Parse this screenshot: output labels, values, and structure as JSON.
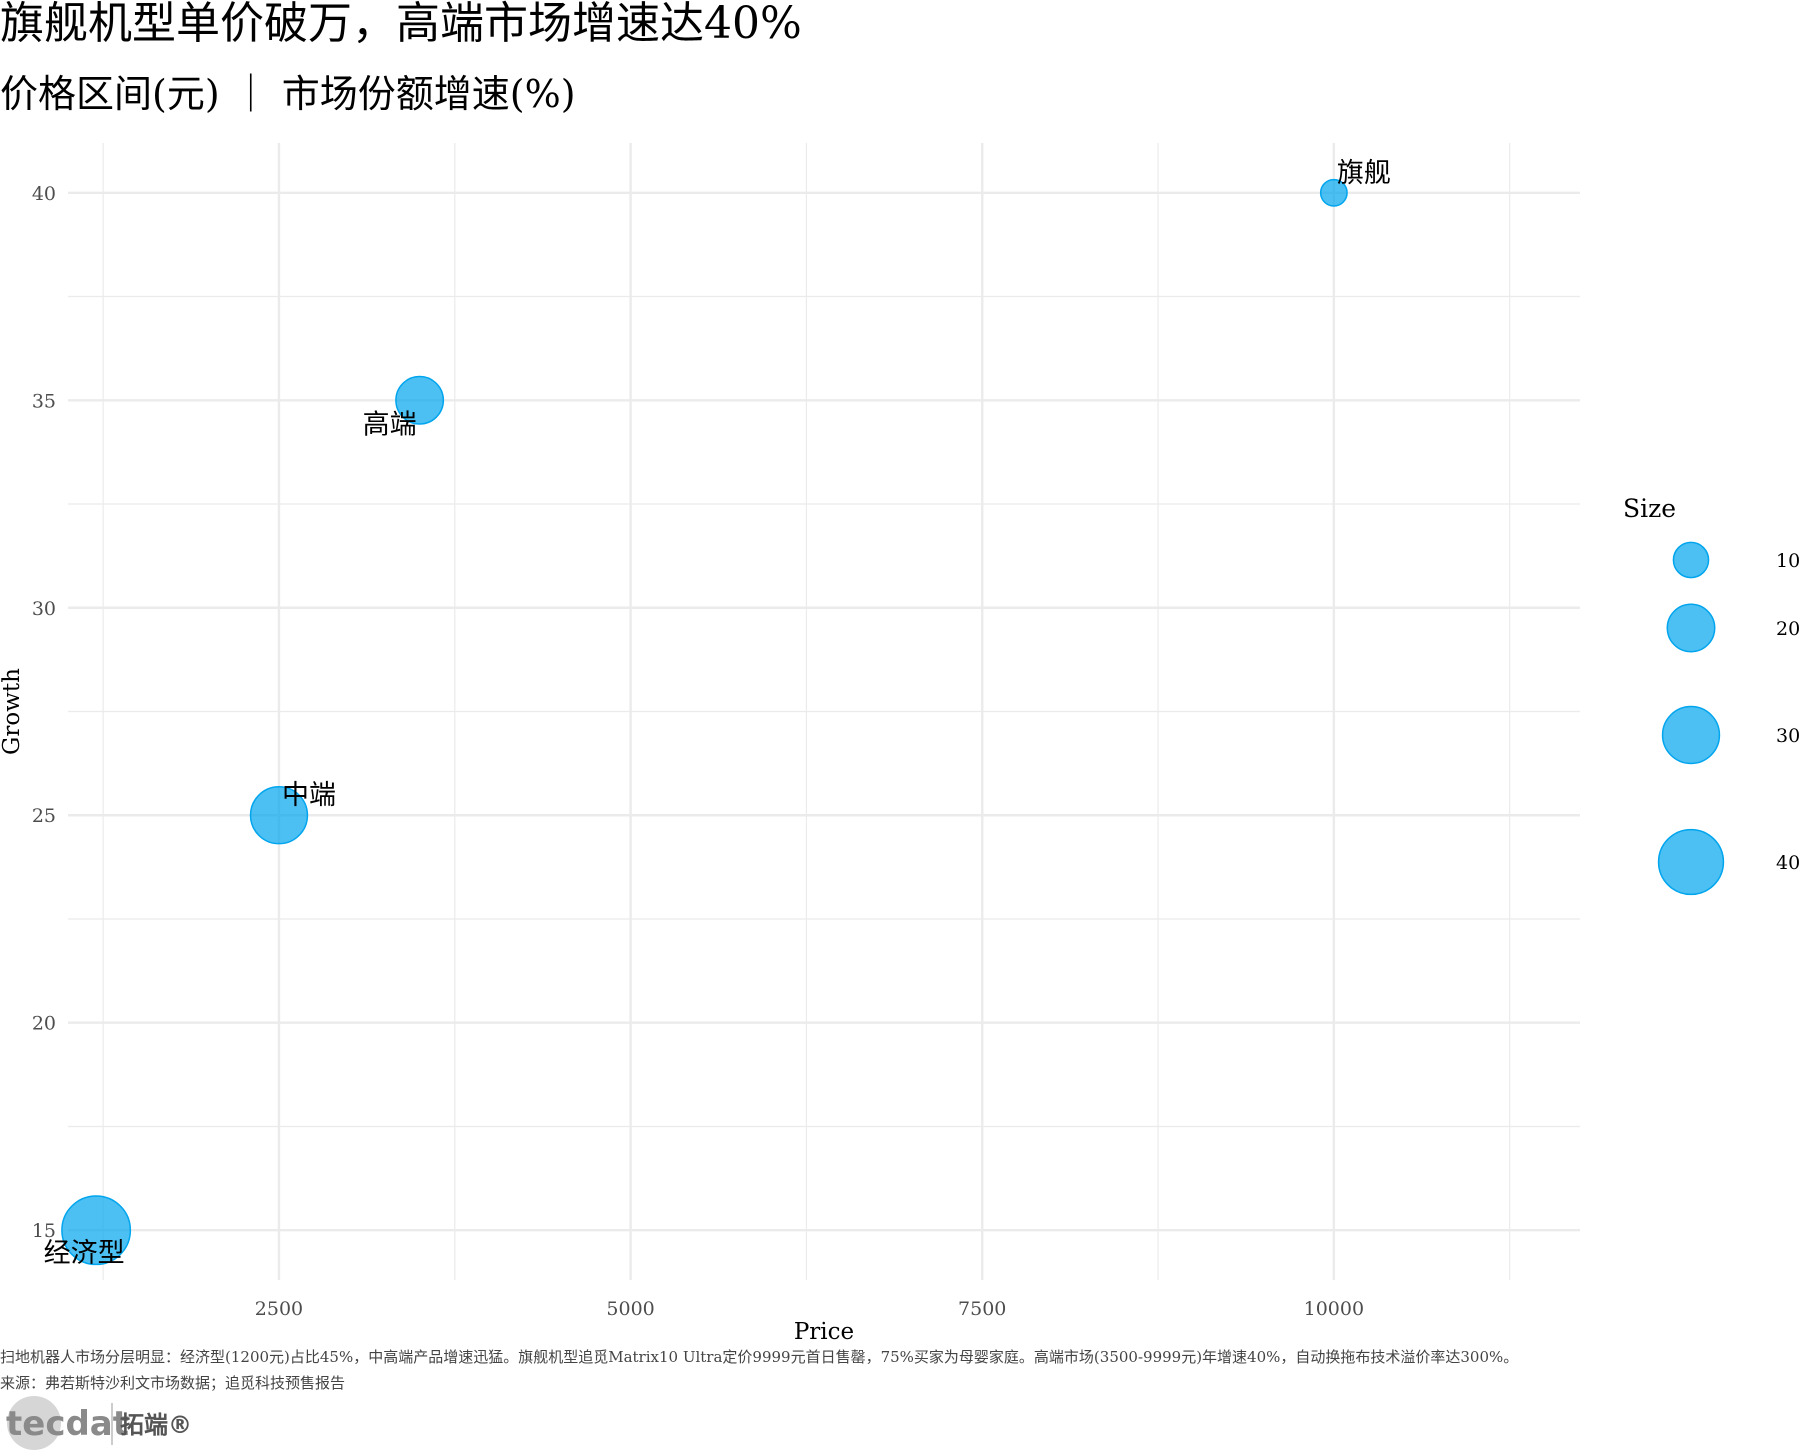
{
  "title": "旗舰机型单价破万，高端市场增速达40%",
  "subtitle": "价格区间(元) ｜ 市场份额增速(%)",
  "caption": "扫地机器人市场分层明显：经济型(1200元)占比45%，中高端产品增速迅猛。旗舰机型追觅Matrix10 Ultra定价9999元首日售罄，75%买家为母婴家庭。高端市场(3500-9999元)年增速40%，自动换拖布技术溢价率达300%。",
  "source": "来源：弗若斯特沙利文市场数据；追觅科技预售报告",
  "logo": {
    "text": "tecdat",
    "cn": "拓端®"
  },
  "colors": {
    "bubble": "#00A5EE",
    "grid": "#EBEBEB",
    "axis_text": "#4d4d4d"
  },
  "chart_data": {
    "type": "scatter",
    "xlabel": "Price",
    "ylabel": "Growth",
    "xlim": [
      1000,
      11750
    ],
    "ylim": [
      13.8,
      41.2
    ],
    "x_ticks": [
      2500,
      5000,
      7500,
      10000
    ],
    "y_ticks": [
      15,
      20,
      25,
      30,
      35,
      40
    ],
    "grid": true,
    "points": [
      {
        "label": "经济型",
        "x": 1200,
        "y": 15,
        "size": 45
      },
      {
        "label": "中端",
        "x": 2500,
        "y": 25,
        "size": 30
      },
      {
        "label": "高端",
        "x": 3500,
        "y": 35,
        "size": 20
      },
      {
        "label": "旗舰",
        "x": 10000,
        "y": 40,
        "size": 5
      }
    ],
    "legend": {
      "title": "Size",
      "position": "right",
      "values": [
        10,
        20,
        30,
        40
      ]
    }
  }
}
